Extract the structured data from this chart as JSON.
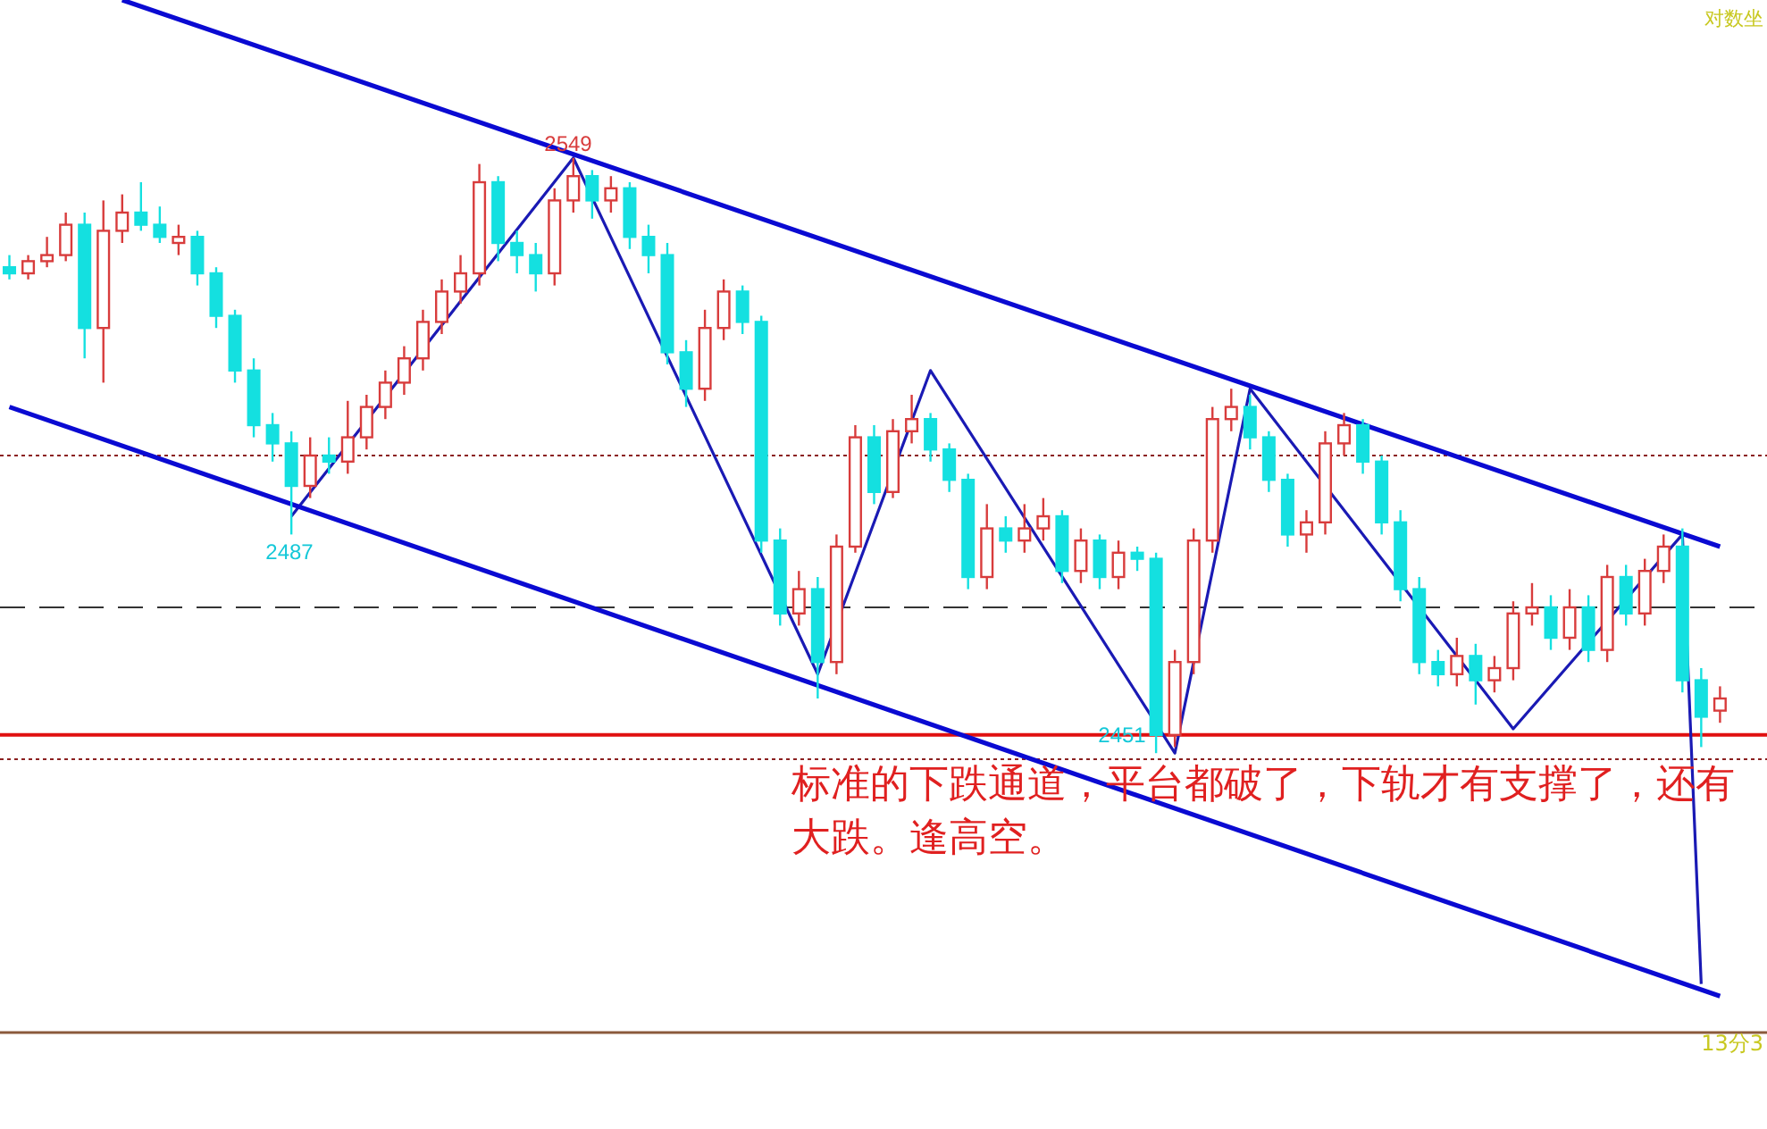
{
  "chart_data": {
    "type": "candlestick",
    "tick_labels": false,
    "categories": [
      null,
      null,
      null,
      null,
      null,
      null,
      null,
      null,
      null,
      null,
      null,
      null,
      null,
      null,
      null,
      null,
      null,
      null,
      null,
      null,
      null,
      null,
      null,
      null,
      null,
      null,
      null,
      null,
      null,
      null,
      null,
      null,
      null,
      null,
      null,
      null,
      null,
      null,
      null,
      null,
      null,
      null,
      null,
      null,
      null,
      null,
      null,
      null,
      null,
      null,
      null,
      null,
      null,
      null,
      null,
      null,
      null,
      null,
      null,
      null,
      null,
      null,
      null,
      null,
      null,
      null,
      null,
      null,
      null,
      null,
      null,
      null,
      null,
      null,
      null,
      null,
      null,
      null,
      null,
      null,
      null,
      null,
      null,
      null,
      null,
      null,
      null,
      null,
      null,
      null,
      null,
      null
    ],
    "ohlc": [
      [
        2531,
        2533,
        2529,
        2530
      ],
      [
        2530,
        2533,
        2529,
        2532
      ],
      [
        2532,
        2536,
        2531,
        2533
      ],
      [
        2533,
        2540,
        2532,
        2538
      ],
      [
        2538,
        2540,
        2516,
        2521
      ],
      [
        2521,
        2542,
        2512,
        2537
      ],
      [
        2537,
        2543,
        2535,
        2540
      ],
      [
        2540,
        2545,
        2537,
        2538
      ],
      [
        2538,
        2541,
        2535,
        2536
      ],
      [
        2535,
        2538,
        2533,
        2536
      ],
      [
        2536,
        2537,
        2528,
        2530
      ],
      [
        2530,
        2531,
        2521,
        2523
      ],
      [
        2523,
        2524,
        2512,
        2514
      ],
      [
        2514,
        2516,
        2503,
        2505
      ],
      [
        2505,
        2507,
        2499,
        2502
      ],
      [
        2502,
        2504,
        2487,
        2495
      ],
      [
        2495,
        2503,
        2493,
        2500
      ],
      [
        2500,
        2503,
        2497,
        2499
      ],
      [
        2499,
        2509,
        2497,
        2503
      ],
      [
        2503,
        2510,
        2501,
        2508
      ],
      [
        2508,
        2514,
        2506,
        2512
      ],
      [
        2512,
        2518,
        2510,
        2516
      ],
      [
        2516,
        2524,
        2514,
        2522
      ],
      [
        2522,
        2529,
        2520,
        2527
      ],
      [
        2527,
        2533,
        2525,
        2530
      ],
      [
        2530,
        2548,
        2528,
        2545
      ],
      [
        2545,
        2546,
        2532,
        2535
      ],
      [
        2535,
        2537,
        2530,
        2533
      ],
      [
        2533,
        2535,
        2527,
        2530
      ],
      [
        2530,
        2544,
        2528,
        2542
      ],
      [
        2542,
        2549,
        2540,
        2546
      ],
      [
        2546,
        2547,
        2539,
        2542
      ],
      [
        2542,
        2546,
        2540,
        2544
      ],
      [
        2544,
        2545,
        2534,
        2536
      ],
      [
        2536,
        2538,
        2530,
        2533
      ],
      [
        2533,
        2535,
        2515,
        2517
      ],
      [
        2517,
        2519,
        2508,
        2511
      ],
      [
        2511,
        2524,
        2509,
        2521
      ],
      [
        2521,
        2529,
        2519,
        2527
      ],
      [
        2527,
        2528,
        2520,
        2522
      ],
      [
        2522,
        2523,
        2484,
        2486
      ],
      [
        2486,
        2488,
        2472,
        2474
      ],
      [
        2474,
        2481,
        2472,
        2478
      ],
      [
        2478,
        2480,
        2460,
        2466
      ],
      [
        2466,
        2487,
        2464,
        2485
      ],
      [
        2485,
        2505,
        2484,
        2503
      ],
      [
        2503,
        2505,
        2492,
        2494
      ],
      [
        2494,
        2506,
        2493,
        2504
      ],
      [
        2504,
        2510,
        2502,
        2506
      ],
      [
        2506,
        2507,
        2499,
        2501
      ],
      [
        2501,
        2502,
        2494,
        2496
      ],
      [
        2496,
        2497,
        2478,
        2480
      ],
      [
        2480,
        2492,
        2478,
        2488
      ],
      [
        2488,
        2490,
        2484,
        2486
      ],
      [
        2486,
        2492,
        2484,
        2488
      ],
      [
        2488,
        2493,
        2486,
        2490
      ],
      [
        2490,
        2491,
        2479,
        2481
      ],
      [
        2481,
        2488,
        2479,
        2486
      ],
      [
        2486,
        2487,
        2478,
        2480
      ],
      [
        2480,
        2486,
        2478,
        2484
      ],
      [
        2484,
        2485,
        2481,
        2483
      ],
      [
        2483,
        2484,
        2451,
        2454
      ],
      [
        2454,
        2468,
        2452,
        2466
      ],
      [
        2466,
        2488,
        2464,
        2486
      ],
      [
        2486,
        2508,
        2484,
        2506
      ],
      [
        2506,
        2511,
        2504,
        2508
      ],
      [
        2508,
        2510,
        2501,
        2503
      ],
      [
        2503,
        2504,
        2494,
        2496
      ],
      [
        2496,
        2497,
        2485,
        2487
      ],
      [
        2487,
        2491,
        2484,
        2489
      ],
      [
        2489,
        2504,
        2487,
        2502
      ],
      [
        2502,
        2507,
        2500,
        2505
      ],
      [
        2505,
        2506,
        2497,
        2499
      ],
      [
        2499,
        2500,
        2487,
        2489
      ],
      [
        2489,
        2491,
        2476,
        2478
      ],
      [
        2478,
        2480,
        2464,
        2466
      ],
      [
        2466,
        2468,
        2462,
        2464
      ],
      [
        2464,
        2470,
        2462,
        2467
      ],
      [
        2467,
        2469,
        2459,
        2463
      ],
      [
        2463,
        2467,
        2461,
        2465
      ],
      [
        2465,
        2476,
        2463,
        2474
      ],
      [
        2474,
        2479,
        2472,
        2475
      ],
      [
        2475,
        2477,
        2468,
        2470
      ],
      [
        2470,
        2478,
        2468,
        2475
      ],
      [
        2475,
        2477,
        2466,
        2468
      ],
      [
        2468,
        2482,
        2466,
        2480
      ],
      [
        2480,
        2482,
        2472,
        2474
      ],
      [
        2474,
        2483,
        2472,
        2481
      ],
      [
        2481,
        2487,
        2479,
        2485
      ],
      [
        2485,
        2488,
        2461,
        2463
      ],
      [
        2463,
        2465,
        2452,
        2457
      ],
      [
        2458,
        2462,
        2456,
        2460
      ]
    ],
    "series": [
      {
        "type": "line",
        "color": "#1a1ab4",
        "values": [
          null,
          null,
          null,
          null,
          null,
          null,
          null,
          null,
          null,
          null,
          null,
          null,
          null,
          null,
          null,
          2490,
          null,
          null,
          null,
          null,
          null,
          null,
          null,
          null,
          null,
          null,
          null,
          null,
          null,
          null,
          2549,
          null,
          null,
          null,
          null,
          null,
          null,
          null,
          null,
          null,
          null,
          null,
          null,
          2464,
          null,
          null,
          null,
          null,
          null,
          2514,
          null,
          null,
          null,
          null,
          null,
          null,
          null,
          null,
          null,
          null,
          null,
          null,
          2451,
          null,
          null,
          null,
          2511,
          null,
          null,
          null,
          null,
          null,
          null,
          null,
          null,
          null,
          null,
          null,
          null,
          null,
          2455,
          null,
          null,
          null,
          null,
          null,
          null,
          null,
          null,
          2487,
          2413,
          null
        ]
      },
      {
        "type": "line",
        "color": "#0a0ad2",
        "values": [
          null,
          null,
          null,
          null,
          null,
          null,
          2575,
          null,
          null,
          null,
          null,
          null,
          null,
          null,
          null,
          null,
          null,
          null,
          null,
          null,
          null,
          null,
          null,
          null,
          null,
          null,
          null,
          null,
          null,
          null,
          null,
          null,
          null,
          null,
          null,
          null,
          null,
          null,
          null,
          null,
          null,
          null,
          null,
          null,
          null,
          null,
          null,
          null,
          null,
          null,
          null,
          null,
          null,
          null,
          null,
          null,
          null,
          null,
          null,
          null,
          null,
          null,
          null,
          null,
          null,
          null,
          null,
          null,
          null,
          null,
          null,
          null,
          null,
          null,
          null,
          null,
          null,
          null,
          null,
          null,
          null,
          null,
          null,
          null,
          null,
          null,
          null,
          null,
          null,
          null,
          null,
          2485
        ]
      },
      {
        "type": "line",
        "color": "#0a0ad2",
        "values": [
          2508,
          null,
          null,
          null,
          null,
          null,
          null,
          null,
          null,
          null,
          null,
          null,
          null,
          null,
          null,
          null,
          null,
          null,
          null,
          null,
          null,
          null,
          null,
          null,
          null,
          null,
          null,
          null,
          null,
          null,
          null,
          null,
          null,
          null,
          null,
          null,
          null,
          null,
          null,
          null,
          null,
          null,
          null,
          null,
          null,
          null,
          null,
          null,
          null,
          null,
          null,
          null,
          null,
          null,
          null,
          null,
          null,
          null,
          null,
          null,
          null,
          null,
          null,
          null,
          null,
          null,
          null,
          null,
          null,
          null,
          null,
          null,
          null,
          null,
          null,
          null,
          null,
          null,
          null,
          null,
          null,
          null,
          null,
          null,
          null,
          null,
          null,
          null,
          null,
          null,
          null,
          2411
        ]
      }
    ],
    "ref_lines": [
      {
        "axis": "y",
        "value": 2500,
        "color": "#8b2020",
        "line_style": "dotted"
      },
      {
        "axis": "y",
        "value": 2475,
        "color": "#333333",
        "line_style": "dashed"
      },
      {
        "axis": "y",
        "value": 2454,
        "color": "#e01010",
        "line_style": "solid"
      },
      {
        "axis": "y",
        "value": 2450,
        "color": "#8b2020",
        "line_style": "dotted"
      }
    ],
    "annotations": [
      {
        "text": "2549",
        "y": 2549
      },
      {
        "text": "2487",
        "y": 2487
      },
      {
        "text": "2451",
        "y": 2451
      },
      "标准的下跌通道，平台都破了，下轨才有支撑了，还有大跌。逢高空。",
      "13分3",
      "对数坐"
    ]
  }
}
